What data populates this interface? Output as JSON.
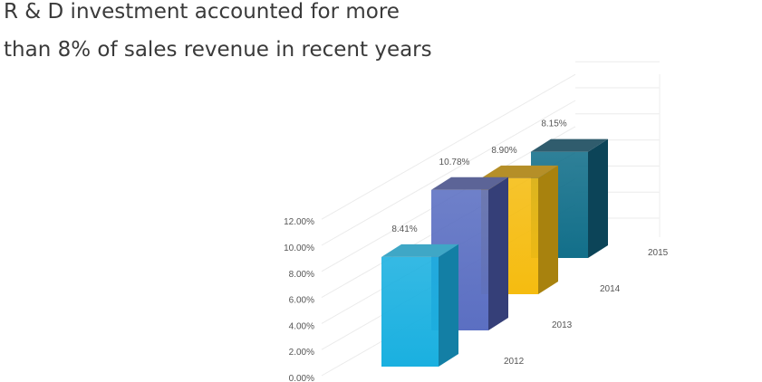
{
  "title_lines": [
    "R & D investment accounted for more",
    "than 8% of sales revenue in recent years"
  ],
  "chart_data": {
    "type": "bar",
    "title": "R & D investment accounted for more than 8% of sales revenue in recent years",
    "categories": [
      "2012",
      "2013",
      "2014",
      "2015"
    ],
    "values": [
      8.41,
      10.78,
      8.9,
      8.15
    ],
    "value_labels": [
      "8.41%",
      "10.78%",
      "8.90%",
      "8.15%"
    ],
    "yticks": [
      "0.00%",
      "2.00%",
      "4.00%",
      "6.00%",
      "8.00%",
      "10.00%",
      "12.00%"
    ],
    "ylim": [
      0,
      12
    ],
    "grid": true,
    "legend": "none",
    "style": "3d-columns",
    "colors": {
      "2012": {
        "front": "#1ab0e0",
        "side": "#137fa5",
        "top": "#3fa7c6"
      },
      "2013": {
        "front": "#5b6fc2",
        "side": "#353f78",
        "top": "#5c6497"
      },
      "2014": {
        "front": "#f5bc10",
        "side": "#a8820e",
        "top": "#b58f28"
      },
      "2015": {
        "front": "#126f8a",
        "side": "#0c4458",
        "top": "#305c6d"
      }
    }
  }
}
